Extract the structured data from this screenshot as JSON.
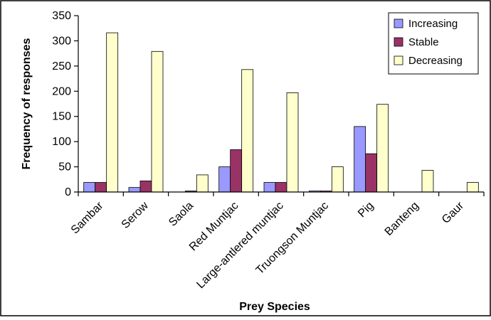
{
  "chart_data": {
    "type": "bar",
    "title": "",
    "xlabel": "Prey Species",
    "ylabel": "Frequency of responses",
    "ylim": [
      0,
      350
    ],
    "yticks": [
      0,
      50,
      100,
      150,
      200,
      250,
      300,
      350
    ],
    "grid": false,
    "legend_position": "top-right",
    "categories": [
      "Sambar",
      "Serow",
      "Saola",
      "Red Muntjac",
      "Large-antlered muntjac",
      "Truongson Muntjac",
      "Pig",
      "Banteng",
      "Gaur"
    ],
    "series": [
      {
        "name": "Increasing",
        "color": "#9999FF",
        "values": [
          19,
          9,
          0,
          50,
          19,
          2,
          130,
          0,
          0
        ]
      },
      {
        "name": "Stable",
        "color": "#993366",
        "values": [
          19,
          22,
          2,
          84,
          19,
          2,
          76,
          0,
          0
        ]
      },
      {
        "name": "Decreasing",
        "color": "#FFFFCC",
        "values": [
          316,
          279,
          34,
          243,
          197,
          50,
          174,
          43,
          19
        ]
      }
    ]
  }
}
